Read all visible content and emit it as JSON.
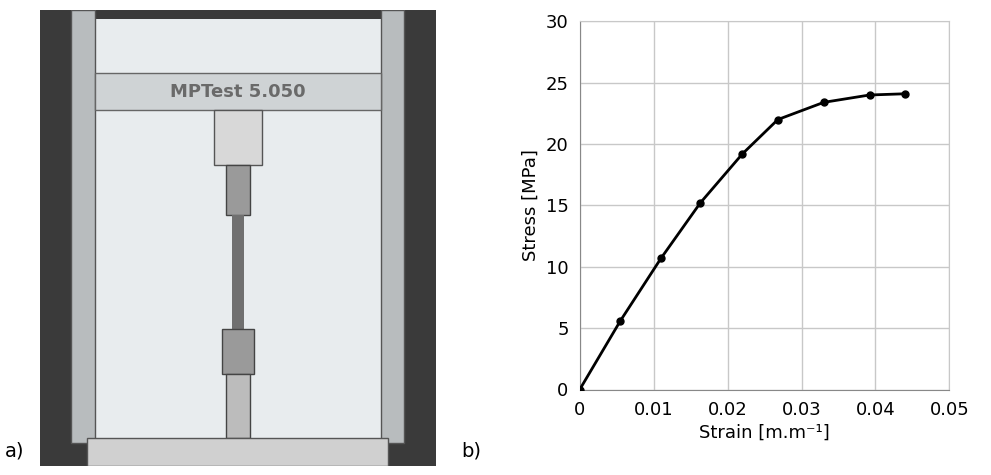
{
  "figure": {
    "panel_labels": [
      "a)",
      "b)"
    ],
    "photo_text": "MPTest 5.050"
  },
  "chart_data": {
    "type": "line",
    "x": [
      0,
      0.0055,
      0.011,
      0.0163,
      0.022,
      0.0268,
      0.033,
      0.0392,
      0.044
    ],
    "values": [
      0,
      5.6,
      10.7,
      15.2,
      19.2,
      22.0,
      23.4,
      24.0,
      24.1
    ],
    "x_label": "Strain [m.m⁻¹]",
    "y_label": "Stress [MPa]",
    "xlim": [
      0,
      0.05
    ],
    "xticks": [
      0,
      0.01,
      0.02,
      0.03,
      0.04,
      0.05
    ],
    "ylim": [
      0,
      30
    ],
    "yticks": [
      0,
      5,
      10,
      15,
      20,
      25,
      30
    ],
    "grid": true,
    "color": "#000000",
    "marker": "o",
    "line_style": "solid"
  }
}
